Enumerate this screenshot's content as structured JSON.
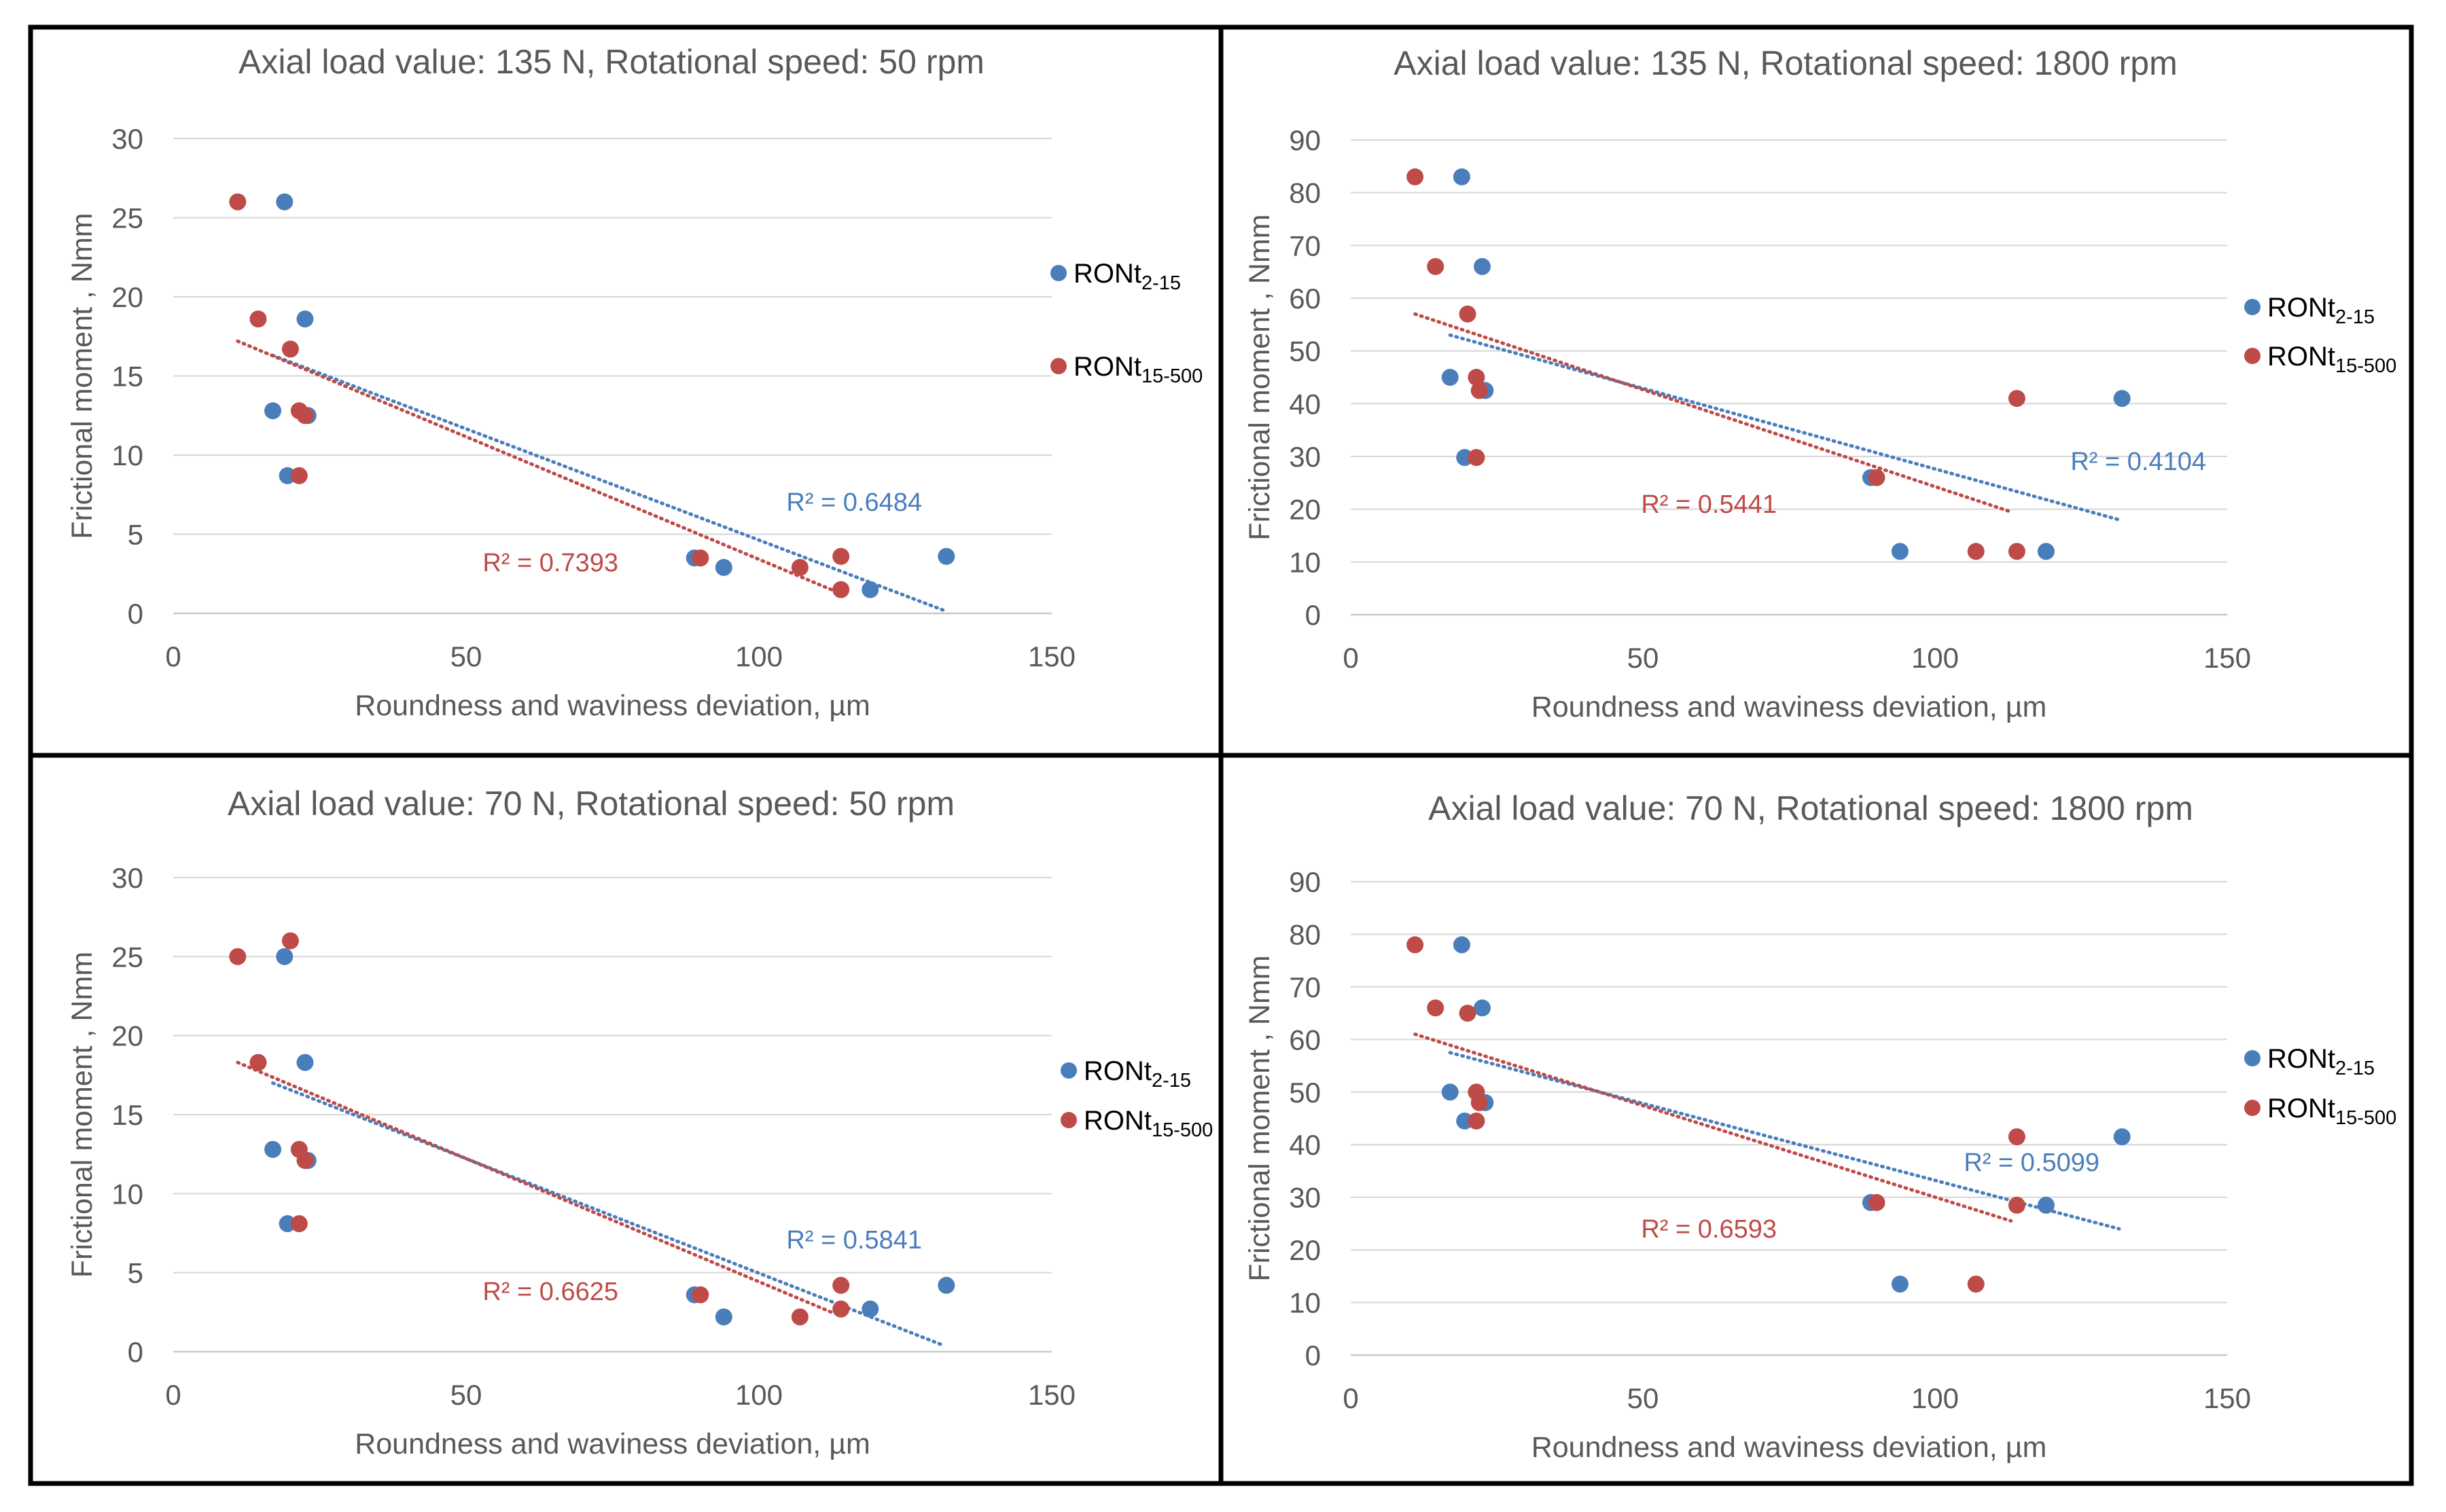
{
  "chart_data": [
    {
      "type": "scatter",
      "title": "Axial load value:  135 N, Rotational speed: 50 rpm",
      "xlabel": "Roundness and waviness deviation, µm",
      "ylabel": "Frictional moment , Nmm",
      "xlim": [
        0,
        150
      ],
      "ylim": [
        0,
        30
      ],
      "xticks": [
        0,
        50,
        100,
        150
      ],
      "yticks": [
        0,
        5,
        10,
        15,
        20,
        25,
        30
      ],
      "grid": true,
      "legend_position": "right",
      "series": [
        {
          "name": "RONt",
          "sub": "2-15",
          "color": "#4a7ebb",
          "points": [
            [
              19,
              26
            ],
            [
              22.5,
              18.6
            ],
            [
              17,
              12.8
            ],
            [
              23,
              12.5
            ],
            [
              19.5,
              8.7
            ],
            [
              89,
              3.5
            ],
            [
              94,
              2.9
            ],
            [
              119,
              1.5
            ],
            [
              132,
              3.6
            ]
          ],
          "trend": [
            [
              17,
              16.3
            ],
            [
              131.5,
              0.2
            ]
          ],
          "r2": "R² = 0.6484"
        },
        {
          "name": "RONt",
          "sub": "15-500",
          "color": "#be4b48",
          "points": [
            [
              11,
              26
            ],
            [
              14.5,
              18.6
            ],
            [
              20,
              16.7
            ],
            [
              21.5,
              12.8
            ],
            [
              22.5,
              12.5
            ],
            [
              21.5,
              8.7
            ],
            [
              90,
              3.5
            ],
            [
              107,
              2.9
            ],
            [
              114,
              3.6
            ],
            [
              114,
              1.5
            ]
          ],
          "trend": [
            [
              11,
              17.2
            ],
            [
              113,
              1.4
            ]
          ],
          "r2": "R² = 0.7393"
        }
      ]
    },
    {
      "type": "scatter",
      "title": "Axial load value:  135 N, Rotational speed: 1800 rpm",
      "xlabel": "Roundness and waviness deviation, µm",
      "ylabel": "Frictional moment , Nmm",
      "xlim": [
        0,
        150
      ],
      "ylim": [
        0,
        90
      ],
      "xticks": [
        0,
        50,
        100,
        150
      ],
      "yticks": [
        0,
        10,
        20,
        30,
        40,
        50,
        60,
        70,
        80,
        90
      ],
      "grid": true,
      "legend_position": "right",
      "series": [
        {
          "name": "RONt",
          "sub": "2-15",
          "color": "#4a7ebb",
          "points": [
            [
              19,
              83
            ],
            [
              22.5,
              66
            ],
            [
              17,
              45
            ],
            [
              23,
              42.5
            ],
            [
              19.5,
              29.8
            ],
            [
              89,
              26
            ],
            [
              94,
              12
            ],
            [
              119,
              12
            ],
            [
              132,
              41
            ]
          ],
          "trend": [
            [
              17,
              53
            ],
            [
              131.5,
              18
            ]
          ],
          "r2": "R² = 0.4104"
        },
        {
          "name": "RONt",
          "sub": "15-500",
          "color": "#be4b48",
          "points": [
            [
              11,
              83
            ],
            [
              14.5,
              66
            ],
            [
              20,
              57
            ],
            [
              21.5,
              45
            ],
            [
              22,
              42.5
            ],
            [
              21.5,
              29.8
            ],
            [
              90,
              26
            ],
            [
              107,
              12
            ],
            [
              114,
              41
            ],
            [
              114,
              12
            ]
          ],
          "trend": [
            [
              11,
              57
            ],
            [
              113,
              19.5
            ]
          ],
          "r2": "R² = 0.5441"
        }
      ]
    },
    {
      "type": "scatter",
      "title": "Axial load value:  70 N, Rotational speed: 50 rpm",
      "xlabel": "Roundness and waviness deviation, µm",
      "ylabel": "Frictional moment , Nmm",
      "xlim": [
        0,
        150
      ],
      "ylim": [
        0,
        30
      ],
      "xticks": [
        0,
        50,
        100,
        150
      ],
      "yticks": [
        0,
        5,
        10,
        15,
        20,
        25,
        30
      ],
      "grid": true,
      "legend_position": "right",
      "series": [
        {
          "name": "RONt",
          "sub": "2-15",
          "color": "#4a7ebb",
          "points": [
            [
              19,
              25
            ],
            [
              22.5,
              18.3
            ],
            [
              17,
              12.8
            ],
            [
              23,
              12.1
            ],
            [
              19.5,
              8.1
            ],
            [
              89,
              3.6
            ],
            [
              94,
              2.2
            ],
            [
              119,
              2.7
            ],
            [
              132,
              4.2
            ]
          ],
          "trend": [
            [
              17,
              17
            ],
            [
              131.5,
              0.4
            ]
          ],
          "r2": "R² = 0.5841"
        },
        {
          "name": "RONt",
          "sub": "15-500",
          "color": "#be4b48",
          "points": [
            [
              11,
              25
            ],
            [
              14.5,
              18.3
            ],
            [
              20,
              26
            ],
            [
              21.5,
              12.8
            ],
            [
              22.5,
              12.1
            ],
            [
              21.5,
              8.1
            ],
            [
              90,
              3.6
            ],
            [
              107,
              2.2
            ],
            [
              114,
              4.2
            ],
            [
              114,
              2.7
            ]
          ],
          "trend": [
            [
              11,
              18.3
            ],
            [
              113,
              2.4
            ]
          ],
          "r2": "R² = 0.6625"
        }
      ]
    },
    {
      "type": "scatter",
      "title": "Axial load value:  70 N, Rotational speed: 1800 rpm",
      "xlabel": "Roundness and waviness deviation, µm",
      "ylabel": "Frictional moment , Nmm",
      "xlim": [
        0,
        150
      ],
      "ylim": [
        0,
        90
      ],
      "xticks": [
        0,
        50,
        100,
        150
      ],
      "yticks": [
        0,
        10,
        20,
        30,
        40,
        50,
        60,
        70,
        80,
        90
      ],
      "grid": true,
      "legend_position": "right",
      "series": [
        {
          "name": "RONt",
          "sub": "2-15",
          "color": "#4a7ebb",
          "points": [
            [
              19,
              78
            ],
            [
              22.5,
              66
            ],
            [
              17,
              50
            ],
            [
              23,
              48
            ],
            [
              19.5,
              44.5
            ],
            [
              89,
              29
            ],
            [
              94,
              13.5
            ],
            [
              119,
              28.5
            ],
            [
              132,
              41.5
            ]
          ],
          "trend": [
            [
              17,
              57.5
            ],
            [
              131.5,
              24
            ]
          ],
          "r2": "R² = 0.5099"
        },
        {
          "name": "RONt",
          "sub": "15-500",
          "color": "#be4b48",
          "points": [
            [
              11,
              78
            ],
            [
              14.5,
              66
            ],
            [
              20,
              65
            ],
            [
              21.5,
              50
            ],
            [
              22,
              48
            ],
            [
              21.5,
              44.5
            ],
            [
              90,
              29
            ],
            [
              107,
              13.5
            ],
            [
              114,
              41.5
            ],
            [
              114,
              28.5
            ]
          ],
          "trend": [
            [
              11,
              61
            ],
            [
              113,
              25.5
            ]
          ],
          "r2": "R² = 0.6593"
        }
      ]
    }
  ]
}
